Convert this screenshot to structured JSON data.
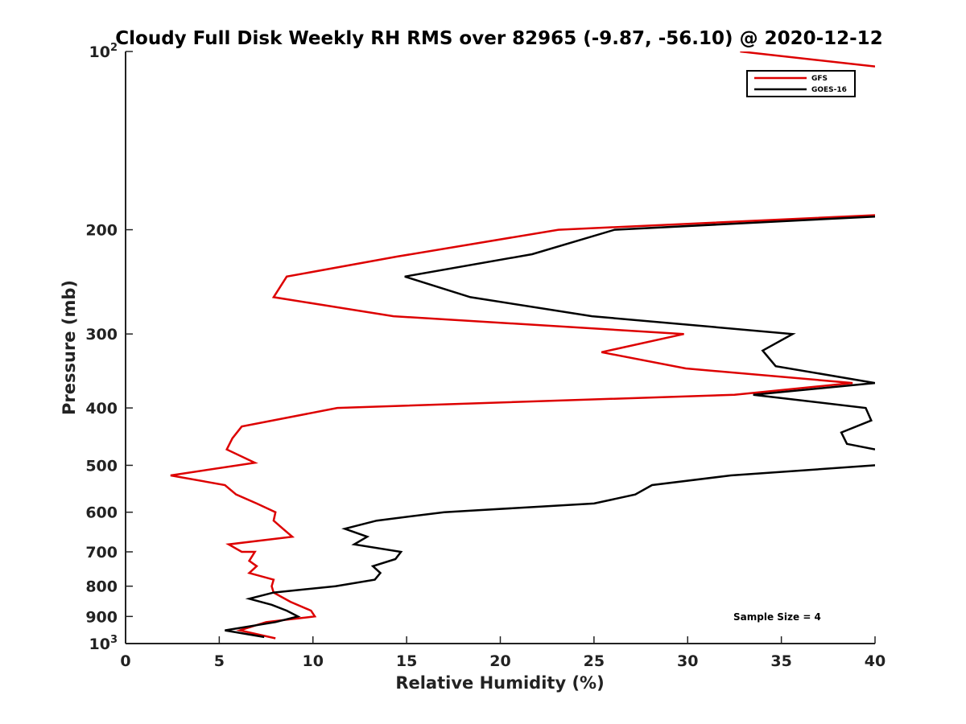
{
  "chart_data": {
    "type": "line",
    "title": "Cloudy Full Disk Weekly RH RMS over 82965 (-9.87, -56.10) @ 2020-12-12",
    "xlabel": "Relative Humidity (%)",
    "ylabel": "Pressure (mb)",
    "xlim": [
      0,
      40
    ],
    "ylim": [
      100,
      1000
    ],
    "yscale": "log",
    "y_reversed": true,
    "xticks": [
      0,
      5,
      10,
      15,
      20,
      25,
      30,
      35,
      40
    ],
    "yticks": [
      {
        "value": 100,
        "base": "10",
        "exp": "2"
      },
      {
        "value": 200,
        "label": "200"
      },
      {
        "value": 300,
        "label": "300"
      },
      {
        "value": 400,
        "label": "400"
      },
      {
        "value": 500,
        "label": "500"
      },
      {
        "value": 600,
        "label": "600"
      },
      {
        "value": 700,
        "label": "700"
      },
      {
        "value": 800,
        "label": "800"
      },
      {
        "value": 900,
        "label": "900"
      },
      {
        "value": 1000,
        "base": "10",
        "exp": "3"
      }
    ],
    "grid": false,
    "legend_position": "top-right",
    "annotation": "Sample Size = 4",
    "series": [
      {
        "name": "GFS",
        "color": "#dd0000",
        "points": [
          [
            32.8,
            100
          ],
          [
            40,
            106
          ],
          [
            null,
            null
          ],
          [
            40,
            189
          ],
          [
            23.1,
            200
          ],
          [
            14.5,
            222
          ],
          [
            8.6,
            240
          ],
          [
            7.9,
            260
          ],
          [
            14.3,
            280
          ],
          [
            29.8,
            300
          ],
          [
            25.4,
            322
          ],
          [
            29.9,
            343
          ],
          [
            38.8,
            363
          ],
          [
            32.5,
            380
          ],
          [
            11.3,
            400
          ],
          [
            6.2,
            430
          ],
          [
            5.7,
            450
          ],
          [
            5.4,
            470
          ],
          [
            6.9,
            495
          ],
          [
            2.4,
            520
          ],
          [
            5.3,
            540
          ],
          [
            5.9,
            560
          ],
          [
            7.0,
            580
          ],
          [
            8.0,
            600
          ],
          [
            7.9,
            620
          ],
          [
            8.4,
            640
          ],
          [
            8.9,
            660
          ],
          [
            5.5,
            680
          ],
          [
            6.2,
            700
          ],
          [
            6.9,
            700
          ],
          [
            6.6,
            725
          ],
          [
            7.0,
            740
          ],
          [
            6.6,
            760
          ],
          [
            7.9,
            780
          ],
          [
            7.8,
            800
          ],
          [
            7.9,
            820
          ],
          [
            8.8,
            850
          ],
          [
            9.9,
            880
          ],
          [
            10.1,
            900
          ],
          [
            7.5,
            920
          ],
          [
            6.1,
            950
          ],
          [
            8.0,
            980
          ]
        ]
      },
      {
        "name": "GOES-16",
        "color": "#000000",
        "points": [
          [
            40,
            190
          ],
          [
            26.1,
            200
          ],
          [
            21.7,
            220
          ],
          [
            14.9,
            240
          ],
          [
            18.4,
            260
          ],
          [
            24.9,
            280
          ],
          [
            35.6,
            300
          ],
          [
            34.0,
            320
          ],
          [
            34.7,
            340
          ],
          [
            40,
            363
          ],
          [
            33.5,
            380
          ],
          [
            39.5,
            400
          ],
          [
            39.8,
            420
          ],
          [
            38.2,
            440
          ],
          [
            38.5,
            460
          ],
          [
            40,
            470
          ],
          [
            null,
            null
          ],
          [
            40,
            500
          ],
          [
            32.3,
            520
          ],
          [
            28.1,
            540
          ],
          [
            27.2,
            560
          ],
          [
            25.0,
            580
          ],
          [
            17.0,
            600
          ],
          [
            13.4,
            620
          ],
          [
            11.7,
            640
          ],
          [
            12.9,
            660
          ],
          [
            12.2,
            680
          ],
          [
            14.7,
            700
          ],
          [
            14.4,
            720
          ],
          [
            13.2,
            740
          ],
          [
            13.6,
            760
          ],
          [
            13.3,
            780
          ],
          [
            11.2,
            800
          ],
          [
            7.9,
            820
          ],
          [
            6.6,
            840
          ],
          [
            7.8,
            860
          ],
          [
            8.6,
            880
          ],
          [
            9.2,
            900
          ],
          [
            8.0,
            920
          ],
          [
            5.3,
            950
          ],
          [
            7.4,
            975
          ]
        ]
      }
    ]
  }
}
